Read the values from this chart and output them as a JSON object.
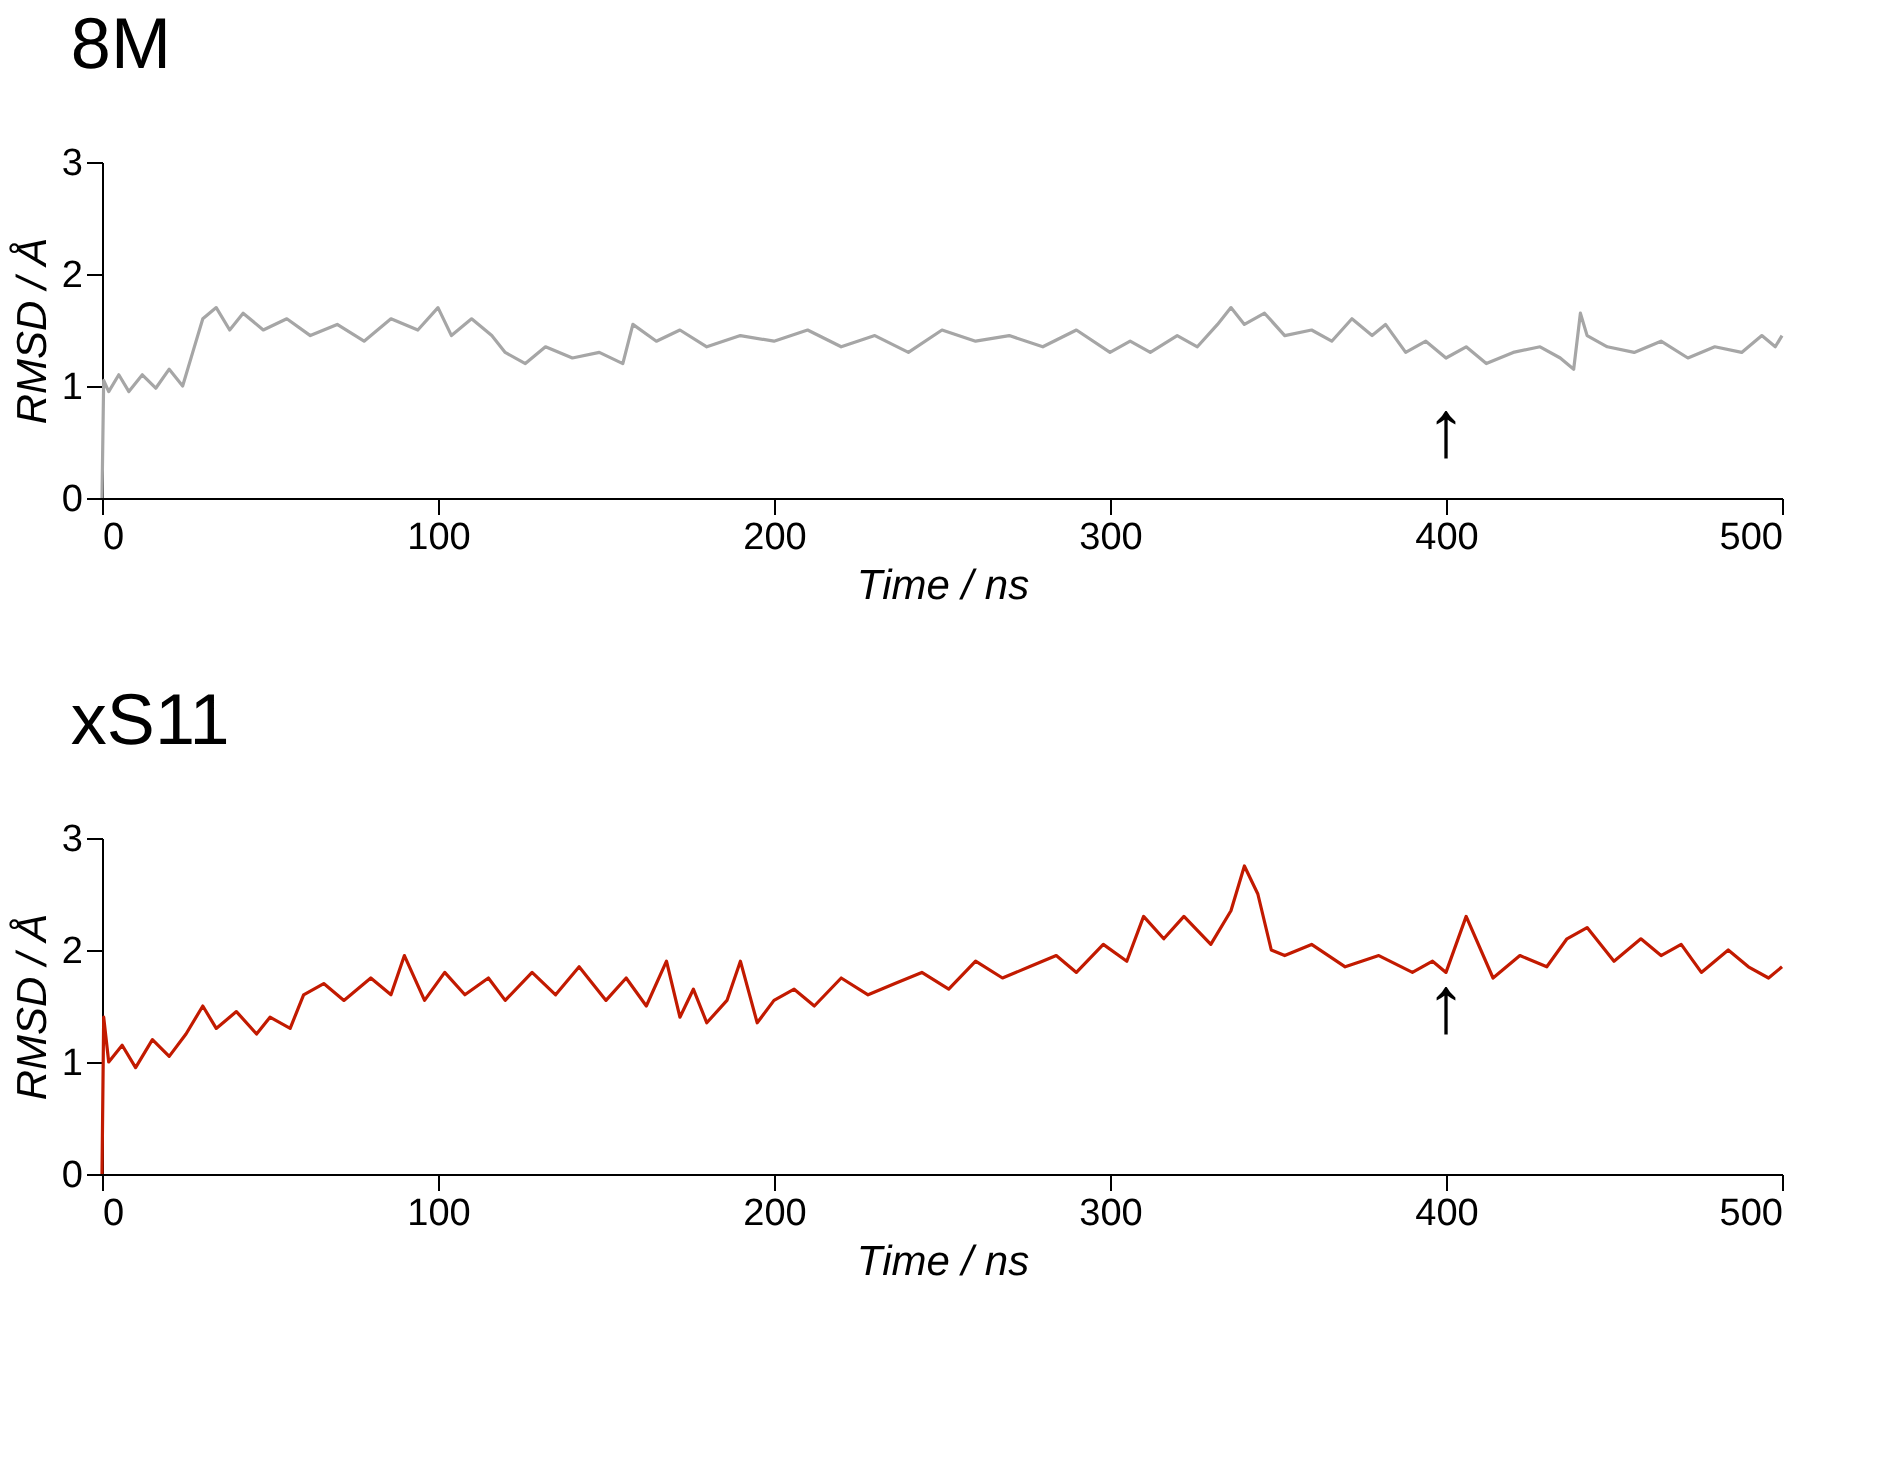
{
  "chart_data": [
    {
      "type": "line",
      "title": "8M",
      "xlabel": "Time / ns",
      "ylabel": "RMSD / Å",
      "xlim": [
        0,
        500
      ],
      "ylim": [
        0,
        3
      ],
      "xticks": [
        0,
        100,
        200,
        300,
        400,
        500
      ],
      "yticks": [
        0,
        1,
        2,
        3
      ],
      "grid": false,
      "series": [
        {
          "color": "#a6a6a6",
          "x": [
            0,
            0.5,
            2,
            5,
            8,
            12,
            16,
            20,
            24,
            27,
            30,
            34,
            38,
            42,
            48,
            55,
            62,
            70,
            78,
            86,
            94,
            100,
            104,
            110,
            116,
            120,
            126,
            132,
            140,
            148,
            155,
            158,
            165,
            172,
            180,
            190,
            200,
            210,
            220,
            230,
            240,
            250,
            260,
            270,
            280,
            290,
            300,
            306,
            312,
            320,
            326,
            332,
            336,
            340,
            346,
            352,
            360,
            366,
            372,
            378,
            382,
            388,
            394,
            400,
            406,
            412,
            420,
            428,
            434,
            438,
            440,
            442,
            448,
            456,
            464,
            472,
            480,
            488,
            494,
            498,
            500
          ],
          "values": [
            0,
            1.05,
            0.95,
            1.1,
            0.95,
            1.1,
            0.98,
            1.15,
            1.0,
            1.3,
            1.6,
            1.7,
            1.5,
            1.65,
            1.5,
            1.6,
            1.45,
            1.55,
            1.4,
            1.6,
            1.5,
            1.7,
            1.45,
            1.6,
            1.45,
            1.3,
            1.2,
            1.35,
            1.25,
            1.3,
            1.2,
            1.55,
            1.4,
            1.5,
            1.35,
            1.45,
            1.4,
            1.5,
            1.35,
            1.45,
            1.3,
            1.5,
            1.4,
            1.45,
            1.35,
            1.5,
            1.3,
            1.4,
            1.3,
            1.45,
            1.35,
            1.55,
            1.7,
            1.55,
            1.65,
            1.45,
            1.5,
            1.4,
            1.6,
            1.45,
            1.55,
            1.3,
            1.4,
            1.25,
            1.35,
            1.2,
            1.3,
            1.35,
            1.25,
            1.15,
            1.65,
            1.45,
            1.35,
            1.3,
            1.4,
            1.25,
            1.35,
            1.3,
            1.45,
            1.35,
            1.45
          ]
        }
      ],
      "annotations": [
        "↑"
      ]
    },
    {
      "type": "line",
      "title": "xS11",
      "xlabel": "Time / ns",
      "ylabel": "RMSD / Å",
      "xlim": [
        0,
        500
      ],
      "ylim": [
        0,
        3
      ],
      "xticks": [
        0,
        100,
        200,
        300,
        400,
        500
      ],
      "yticks": [
        0,
        1,
        2,
        3
      ],
      "grid": false,
      "series": [
        {
          "color": "#c21a00",
          "x": [
            0,
            0.5,
            2,
            6,
            10,
            15,
            20,
            25,
            30,
            34,
            40,
            46,
            50,
            56,
            60,
            66,
            72,
            80,
            86,
            90,
            96,
            102,
            108,
            115,
            120,
            128,
            135,
            142,
            150,
            156,
            162,
            168,
            172,
            176,
            180,
            186,
            190,
            195,
            200,
            206,
            212,
            220,
            228,
            236,
            244,
            252,
            260,
            268,
            276,
            284,
            290,
            298,
            305,
            310,
            316,
            322,
            330,
            336,
            340,
            344,
            348,
            352,
            360,
            370,
            380,
            390,
            396,
            400,
            406,
            414,
            422,
            430,
            436,
            442,
            450,
            458,
            464,
            470,
            476,
            484,
            490,
            496,
            500
          ],
          "values": [
            0,
            1.4,
            1.0,
            1.15,
            0.95,
            1.2,
            1.05,
            1.25,
            1.5,
            1.3,
            1.45,
            1.25,
            1.4,
            1.3,
            1.6,
            1.7,
            1.55,
            1.75,
            1.6,
            1.95,
            1.55,
            1.8,
            1.6,
            1.75,
            1.55,
            1.8,
            1.6,
            1.85,
            1.55,
            1.75,
            1.5,
            1.9,
            1.4,
            1.65,
            1.35,
            1.55,
            1.9,
            1.35,
            1.55,
            1.65,
            1.5,
            1.75,
            1.6,
            1.7,
            1.8,
            1.65,
            1.9,
            1.75,
            1.85,
            1.95,
            1.8,
            2.05,
            1.9,
            2.3,
            2.1,
            2.3,
            2.05,
            2.35,
            2.75,
            2.5,
            2.0,
            1.95,
            2.05,
            1.85,
            1.95,
            1.8,
            1.9,
            1.8,
            2.3,
            1.75,
            1.95,
            1.85,
            2.1,
            2.2,
            1.9,
            2.1,
            1.95,
            2.05,
            1.8,
            2.0,
            1.85,
            1.75,
            1.85
          ]
        }
      ],
      "annotations": [
        "↑"
      ]
    }
  ]
}
